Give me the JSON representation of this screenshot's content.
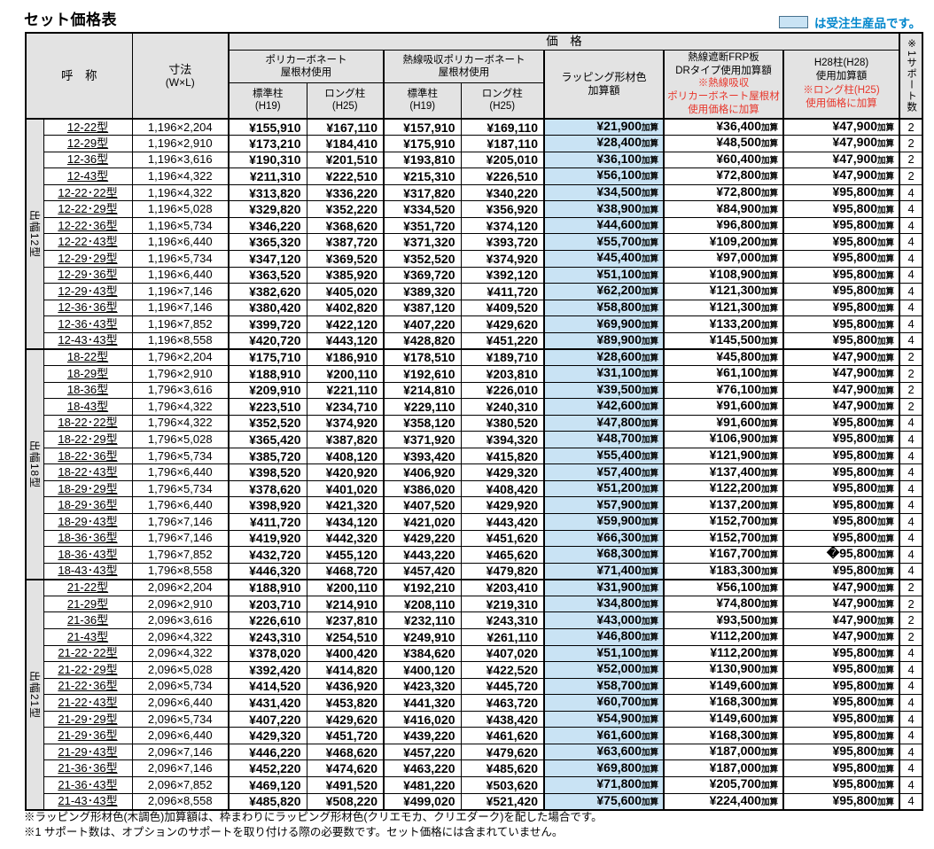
{
  "page_title": "セット価格表",
  "legend": {
    "swatch_color": "#c9e3f4",
    "text": "は受注生産品です。"
  },
  "table": {
    "kasan_suffix": "加算",
    "header": {
      "name": "呼　称",
      "size_l1": "寸法",
      "size_l2": "(W×L)",
      "price": "価　格",
      "poly_l1": "ポリカーボネート",
      "poly_l2": "屋根材使用",
      "heat_l1": "熱線吸収ポリカーボネート",
      "heat_l2": "屋根材使用",
      "std_l1": "標準柱",
      "std_l2": "(H19)",
      "long_l1": "ロング柱",
      "long_l2": "(H25)",
      "wrap_l1": "ラッピング形材色",
      "wrap_l2": "加算額",
      "frp_l1": "熱線遮断FRP板",
      "frp_l2": "DRタイプ使用加算額",
      "frp_red1": "※熱線吸収",
      "frp_red2": "ポリカーボネート屋根材",
      "frp_red3": "使用価格に加算",
      "h28_l1": "H28柱(H28)",
      "h28_l2": "使用加算額",
      "h28_red1": "※ロング柱(H25)",
      "h28_red2": "使用価格に加算",
      "support": "※1サポート数"
    },
    "groups": [
      {
        "label": "出幅12型",
        "rows": [
          {
            "name": "12-22型",
            "size": "1,196×2,204",
            "p1": "¥155,910",
            "p2": "¥167,110",
            "p3": "¥157,910",
            "p4": "¥169,110",
            "wrap": "¥21,900",
            "frp": "¥36,400",
            "h28": "¥47,900",
            "support": "2"
          },
          {
            "name": "12-29型",
            "size": "1,196×2,910",
            "p1": "¥173,210",
            "p2": "¥184,410",
            "p3": "¥175,910",
            "p4": "¥187,110",
            "wrap": "¥28,400",
            "frp": "¥48,500",
            "h28": "¥47,900",
            "support": "2"
          },
          {
            "name": "12-36型",
            "size": "1,196×3,616",
            "p1": "¥190,310",
            "p2": "¥201,510",
            "p3": "¥193,810",
            "p4": "¥205,010",
            "wrap": "¥36,100",
            "frp": "¥60,400",
            "h28": "¥47,900",
            "support": "2"
          },
          {
            "name": "12-43型",
            "size": "1,196×4,322",
            "p1": "¥211,310",
            "p2": "¥222,510",
            "p3": "¥215,310",
            "p4": "¥226,510",
            "wrap": "¥56,100",
            "frp": "¥72,800",
            "h28": "¥47,900",
            "support": "2"
          },
          {
            "name": "12-22･22型",
            "size": "1,196×4,322",
            "p1": "¥313,820",
            "p2": "¥336,220",
            "p3": "¥317,820",
            "p4": "¥340,220",
            "wrap": "¥34,500",
            "frp": "¥72,800",
            "h28": "¥95,800",
            "support": "4"
          },
          {
            "name": "12-22･29型",
            "size": "1,196×5,028",
            "p1": "¥329,820",
            "p2": "¥352,220",
            "p3": "¥334,520",
            "p4": "¥356,920",
            "wrap": "¥38,900",
            "frp": "¥84,900",
            "h28": "¥95,800",
            "support": "4"
          },
          {
            "name": "12-22･36型",
            "size": "1,196×5,734",
            "p1": "¥346,220",
            "p2": "¥368,620",
            "p3": "¥351,720",
            "p4": "¥374,120",
            "wrap": "¥44,600",
            "frp": "¥96,800",
            "h28": "¥95,800",
            "support": "4"
          },
          {
            "name": "12-22･43型",
            "size": "1,196×6,440",
            "p1": "¥365,320",
            "p2": "¥387,720",
            "p3": "¥371,320",
            "p4": "¥393,720",
            "wrap": "¥55,700",
            "frp": "¥109,200",
            "h28": "¥95,800",
            "support": "4"
          },
          {
            "name": "12-29･29型",
            "size": "1,196×5,734",
            "p1": "¥347,120",
            "p2": "¥369,520",
            "p3": "¥352,520",
            "p4": "¥374,920",
            "wrap": "¥45,400",
            "frp": "¥97,000",
            "h28": "¥95,800",
            "support": "4"
          },
          {
            "name": "12-29･36型",
            "size": "1,196×6,440",
            "p1": "¥363,520",
            "p2": "¥385,920",
            "p3": "¥369,720",
            "p4": "¥392,120",
            "wrap": "¥51,100",
            "frp": "¥108,900",
            "h28": "¥95,800",
            "support": "4"
          },
          {
            "name": "12-29･43型",
            "size": "1,196×7,146",
            "p1": "¥382,620",
            "p2": "¥405,020",
            "p3": "¥389,320",
            "p4": "¥411,720",
            "wrap": "¥62,200",
            "frp": "¥121,300",
            "h28": "¥95,800",
            "support": "4"
          },
          {
            "name": "12-36･36型",
            "size": "1,196×7,146",
            "p1": "¥380,420",
            "p2": "¥402,820",
            "p3": "¥387,120",
            "p4": "¥409,520",
            "wrap": "¥58,800",
            "frp": "¥121,300",
            "h28": "¥95,800",
            "support": "4"
          },
          {
            "name": "12-36･43型",
            "size": "1,196×7,852",
            "p1": "¥399,720",
            "p2": "¥422,120",
            "p3": "¥407,220",
            "p4": "¥429,620",
            "wrap": "¥69,900",
            "frp": "¥133,200",
            "h28": "¥95,800",
            "support": "4"
          },
          {
            "name": "12-43･43型",
            "size": "1,196×8,558",
            "p1": "¥420,720",
            "p2": "¥443,120",
            "p3": "¥428,820",
            "p4": "¥451,220",
            "wrap": "¥89,900",
            "frp": "¥145,500",
            "h28": "¥95,800",
            "support": "4"
          }
        ]
      },
      {
        "label": "出幅18型",
        "rows": [
          {
            "name": "18-22型",
            "size": "1,796×2,204",
            "p1": "¥175,710",
            "p2": "¥186,910",
            "p3": "¥178,510",
            "p4": "¥189,710",
            "wrap": "¥28,600",
            "frp": "¥45,800",
            "h28": "¥47,900",
            "support": "2"
          },
          {
            "name": "18-29型",
            "size": "1,796×2,910",
            "p1": "¥188,910",
            "p2": "¥200,110",
            "p3": "¥192,610",
            "p4": "¥203,810",
            "wrap": "¥31,100",
            "frp": "¥61,100",
            "h28": "¥47,900",
            "support": "2"
          },
          {
            "name": "18-36型",
            "size": "1,796×3,616",
            "p1": "¥209,910",
            "p2": "¥221,110",
            "p3": "¥214,810",
            "p4": "¥226,010",
            "wrap": "¥39,500",
            "frp": "¥76,100",
            "h28": "¥47,900",
            "support": "2"
          },
          {
            "name": "18-43型",
            "size": "1,796×4,322",
            "p1": "¥223,510",
            "p2": "¥234,710",
            "p3": "¥229,110",
            "p4": "¥240,310",
            "wrap": "¥42,600",
            "frp": "¥91,600",
            "h28": "¥47,900",
            "support": "2"
          },
          {
            "name": "18-22･22型",
            "size": "1,796×4,322",
            "p1": "¥352,520",
            "p2": "¥374,920",
            "p3": "¥358,120",
            "p4": "¥380,520",
            "wrap": "¥47,800",
            "frp": "¥91,600",
            "h28": "¥95,800",
            "support": "4"
          },
          {
            "name": "18-22･29型",
            "size": "1,796×5,028",
            "p1": "¥365,420",
            "p2": "¥387,820",
            "p3": "¥371,920",
            "p4": "¥394,320",
            "wrap": "¥48,700",
            "frp": "¥106,900",
            "h28": "¥95,800",
            "support": "4"
          },
          {
            "name": "18-22･36型",
            "size": "1,796×5,734",
            "p1": "¥385,720",
            "p2": "¥408,120",
            "p3": "¥393,420",
            "p4": "¥415,820",
            "wrap": "¥55,400",
            "frp": "¥121,900",
            "h28": "¥95,800",
            "support": "4"
          },
          {
            "name": "18-22･43型",
            "size": "1,796×6,440",
            "p1": "¥398,520",
            "p2": "¥420,920",
            "p3": "¥406,920",
            "p4": "¥429,320",
            "wrap": "¥57,400",
            "frp": "¥137,400",
            "h28": "¥95,800",
            "support": "4"
          },
          {
            "name": "18-29･29型",
            "size": "1,796×5,734",
            "p1": "¥378,620",
            "p2": "¥401,020",
            "p3": "¥386,020",
            "p4": "¥408,420",
            "wrap": "¥51,200",
            "frp": "¥122,200",
            "h28": "¥95,800",
            "support": "4"
          },
          {
            "name": "18-29･36型",
            "size": "1,796×6,440",
            "p1": "¥398,920",
            "p2": "¥421,320",
            "p3": "¥407,520",
            "p4": "¥429,920",
            "wrap": "¥57,900",
            "frp": "¥137,200",
            "h28": "¥95,800",
            "support": "4"
          },
          {
            "name": "18-29･43型",
            "size": "1,796×7,146",
            "p1": "¥411,720",
            "p2": "¥434,120",
            "p3": "¥421,020",
            "p4": "¥443,420",
            "wrap": "¥59,900",
            "frp": "¥152,700",
            "h28": "¥95,800",
            "support": "4"
          },
          {
            "name": "18-36･36型",
            "size": "1,796×7,146",
            "p1": "¥419,920",
            "p2": "¥442,320",
            "p3": "¥429,220",
            "p4": "¥451,620",
            "wrap": "¥66,300",
            "frp": "¥152,700",
            "h28": "¥95,800",
            "support": "4"
          },
          {
            "name": "18-36･43型",
            "size": "1,796×7,852",
            "p1": "¥432,720",
            "p2": "¥455,120",
            "p3": "¥443,220",
            "p4": "¥465,620",
            "wrap": "¥68,300",
            "frp": "¥167,700",
            "h28": "�95,800",
            "support": "4"
          },
          {
            "name": "18-43･43型",
            "size": "1,796×8,558",
            "p1": "¥446,320",
            "p2": "¥468,720",
            "p3": "¥457,420",
            "p4": "¥479,820",
            "wrap": "¥71,400",
            "frp": "¥183,300",
            "h28": "¥95,800",
            "support": "4"
          }
        ]
      },
      {
        "label": "出幅21型",
        "rows": [
          {
            "name": "21-22型",
            "size": "2,096×2,204",
            "p1": "¥188,910",
            "p2": "¥200,110",
            "p3": "¥192,210",
            "p4": "¥203,410",
            "wrap": "¥31,900",
            "frp": "¥56,100",
            "h28": "¥47,900",
            "support": "2"
          },
          {
            "name": "21-29型",
            "size": "2,096×2,910",
            "p1": "¥203,710",
            "p2": "¥214,910",
            "p3": "¥208,110",
            "p4": "¥219,310",
            "wrap": "¥34,800",
            "frp": "¥74,800",
            "h28": "¥47,900",
            "support": "2"
          },
          {
            "name": "21-36型",
            "size": "2,096×3,616",
            "p1": "¥226,610",
            "p2": "¥237,810",
            "p3": "¥232,110",
            "p4": "¥243,310",
            "wrap": "¥43,000",
            "frp": "¥93,500",
            "h28": "¥47,900",
            "support": "2"
          },
          {
            "name": "21-43型",
            "size": "2,096×4,322",
            "p1": "¥243,310",
            "p2": "¥254,510",
            "p3": "¥249,910",
            "p4": "¥261,110",
            "wrap": "¥46,800",
            "frp": "¥112,200",
            "h28": "¥47,900",
            "support": "2"
          },
          {
            "name": "21-22･22型",
            "size": "2,096×4,322",
            "p1": "¥378,020",
            "p2": "¥400,420",
            "p3": "¥384,620",
            "p4": "¥407,020",
            "wrap": "¥51,100",
            "frp": "¥112,200",
            "h28": "¥95,800",
            "support": "4"
          },
          {
            "name": "21-22･29型",
            "size": "2,096×5,028",
            "p1": "¥392,420",
            "p2": "¥414,820",
            "p3": "¥400,120",
            "p4": "¥422,520",
            "wrap": "¥52,000",
            "frp": "¥130,900",
            "h28": "¥95,800",
            "support": "4"
          },
          {
            "name": "21-22･36型",
            "size": "2,096×5,734",
            "p1": "¥414,520",
            "p2": "¥436,920",
            "p3": "¥423,320",
            "p4": "¥445,720",
            "wrap": "¥58,700",
            "frp": "¥149,600",
            "h28": "¥95,800",
            "support": "4"
          },
          {
            "name": "21-22･43型",
            "size": "2,096×6,440",
            "p1": "¥431,420",
            "p2": "¥453,820",
            "p3": "¥441,320",
            "p4": "¥463,720",
            "wrap": "¥60,700",
            "frp": "¥168,300",
            "h28": "¥95,800",
            "support": "4"
          },
          {
            "name": "21-29･29型",
            "size": "2,096×5,734",
            "p1": "¥407,220",
            "p2": "¥429,620",
            "p3": "¥416,020",
            "p4": "¥438,420",
            "wrap": "¥54,900",
            "frp": "¥149,600",
            "h28": "¥95,800",
            "support": "4"
          },
          {
            "name": "21-29･36型",
            "size": "2,096×6,440",
            "p1": "¥429,320",
            "p2": "¥451,720",
            "p3": "¥439,220",
            "p4": "¥461,620",
            "wrap": "¥61,600",
            "frp": "¥168,300",
            "h28": "¥95,800",
            "support": "4"
          },
          {
            "name": "21-29･43型",
            "size": "2,096×7,146",
            "p1": "¥446,220",
            "p2": "¥468,620",
            "p3": "¥457,220",
            "p4": "¥479,620",
            "wrap": "¥63,600",
            "frp": "¥187,000",
            "h28": "¥95,800",
            "support": "4"
          },
          {
            "name": "21-36･36型",
            "size": "2,096×7,146",
            "p1": "¥452,220",
            "p2": "¥474,620",
            "p3": "¥463,220",
            "p4": "¥485,620",
            "wrap": "¥69,800",
            "frp": "¥187,000",
            "h28": "¥95,800",
            "support": "4"
          },
          {
            "name": "21-36･43型",
            "size": "2,096×7,852",
            "p1": "¥469,120",
            "p2": "¥491,520",
            "p3": "¥481,220",
            "p4": "¥503,620",
            "wrap": "¥71,800",
            "frp": "¥205,700",
            "h28": "¥95,800",
            "support": "4"
          },
          {
            "name": "21-43･43型",
            "size": "2,096×8,558",
            "p1": "¥485,820",
            "p2": "¥508,220",
            "p3": "¥499,020",
            "p4": "¥521,420",
            "wrap": "¥75,600",
            "frp": "¥224,400",
            "h28": "¥95,800",
            "support": "4"
          }
        ]
      }
    ]
  },
  "footnotes": [
    "※ラッピング形材色(木調色)加算額は、枠まわりにラッピング形材色(クリエモカ、クリエダーク)を配した場合です。",
    "※1 サポート数は、オプションのサポートを取り付ける際の必要数です。セット価格には含まれていません。"
  ]
}
